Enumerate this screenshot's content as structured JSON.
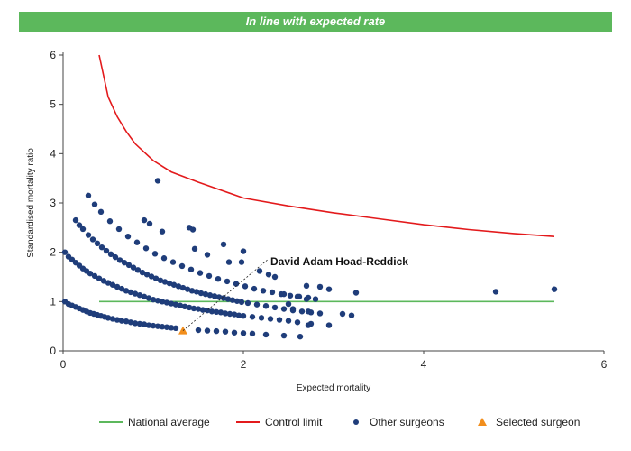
{
  "banner": {
    "text": "In line with expected rate",
    "color": "#5cb85c"
  },
  "chart_data": {
    "type": "scatter",
    "xlabel": "Expected mortality",
    "ylabel": "Standardised mortality ratio",
    "xlim": [
      0,
      6
    ],
    "ylim": [
      0,
      6
    ],
    "xticks": [
      "0",
      "2",
      "4",
      "6"
    ],
    "yticks": [
      "0",
      "1",
      "2",
      "3",
      "4",
      "5",
      "6"
    ],
    "grid": false,
    "legend_position": "bottom",
    "annotation": {
      "text": "David Adam Hoad-Reddick",
      "x": 1.33,
      "y": 0.41
    },
    "series": [
      {
        "name": "National average",
        "kind": "line",
        "color": "#5cb85c",
        "x": [
          0.4,
          5.45
        ],
        "y": [
          1,
          1
        ]
      },
      {
        "name": "Control limit",
        "kind": "line",
        "color": "#e31a1c",
        "x": [
          0.4,
          0.5,
          0.6,
          0.7,
          0.8,
          1.0,
          1.2,
          1.5,
          2.0,
          2.5,
          3.0,
          3.5,
          4.0,
          4.5,
          5.0,
          5.45
        ],
        "y": [
          6.0,
          5.15,
          4.75,
          4.45,
          4.2,
          3.86,
          3.63,
          3.42,
          3.1,
          2.94,
          2.8,
          2.68,
          2.56,
          2.46,
          2.38,
          2.32
        ]
      },
      {
        "name": "Other surgeons",
        "kind": "points",
        "color": "#1f3d7a",
        "points": [
          [
            0.02,
            1.0
          ],
          [
            0.06,
            0.95
          ],
          [
            0.1,
            0.92
          ],
          [
            0.14,
            0.89
          ],
          [
            0.18,
            0.86
          ],
          [
            0.22,
            0.83
          ],
          [
            0.26,
            0.8
          ],
          [
            0.3,
            0.77
          ],
          [
            0.34,
            0.75
          ],
          [
            0.38,
            0.73
          ],
          [
            0.42,
            0.71
          ],
          [
            0.46,
            0.69
          ],
          [
            0.5,
            0.67
          ],
          [
            0.55,
            0.65
          ],
          [
            0.6,
            0.63
          ],
          [
            0.65,
            0.61
          ],
          [
            0.7,
            0.6
          ],
          [
            0.75,
            0.58
          ],
          [
            0.8,
            0.56
          ],
          [
            0.85,
            0.55
          ],
          [
            0.9,
            0.54
          ],
          [
            0.95,
            0.52
          ],
          [
            1.0,
            0.51
          ],
          [
            1.05,
            0.5
          ],
          [
            1.1,
            0.49
          ],
          [
            1.15,
            0.48
          ],
          [
            1.2,
            0.47
          ],
          [
            1.25,
            0.46
          ],
          [
            1.5,
            0.42
          ],
          [
            1.6,
            0.41
          ],
          [
            1.7,
            0.4
          ],
          [
            1.8,
            0.39
          ],
          [
            1.9,
            0.37
          ],
          [
            2.0,
            0.36
          ],
          [
            2.1,
            0.35
          ],
          [
            2.25,
            0.33
          ],
          [
            2.45,
            0.31
          ],
          [
            2.63,
            0.29
          ],
          [
            0.02,
            2.0
          ],
          [
            0.06,
            1.91
          ],
          [
            0.1,
            1.85
          ],
          [
            0.14,
            1.79
          ],
          [
            0.18,
            1.73
          ],
          [
            0.22,
            1.67
          ],
          [
            0.26,
            1.62
          ],
          [
            0.3,
            1.57
          ],
          [
            0.35,
            1.52
          ],
          [
            0.4,
            1.47
          ],
          [
            0.45,
            1.42
          ],
          [
            0.5,
            1.38
          ],
          [
            0.55,
            1.34
          ],
          [
            0.6,
            1.3
          ],
          [
            0.65,
            1.26
          ],
          [
            0.7,
            1.22
          ],
          [
            0.75,
            1.19
          ],
          [
            0.8,
            1.16
          ],
          [
            0.85,
            1.13
          ],
          [
            0.9,
            1.1
          ],
          [
            0.95,
            1.07
          ],
          [
            1.0,
            1.04
          ],
          [
            1.05,
            1.02
          ],
          [
            1.1,
            1.0
          ],
          [
            1.15,
            0.98
          ],
          [
            1.2,
            0.96
          ],
          [
            1.25,
            0.94
          ],
          [
            1.3,
            0.92
          ],
          [
            1.35,
            0.9
          ],
          [
            1.4,
            0.88
          ],
          [
            1.45,
            0.86
          ],
          [
            1.5,
            0.85
          ],
          [
            1.55,
            0.83
          ],
          [
            1.6,
            0.82
          ],
          [
            1.65,
            0.8
          ],
          [
            1.7,
            0.79
          ],
          [
            1.75,
            0.78
          ],
          [
            1.8,
            0.76
          ],
          [
            1.85,
            0.75
          ],
          [
            1.9,
            0.74
          ],
          [
            1.95,
            0.72
          ],
          [
            2.0,
            0.71
          ],
          [
            2.1,
            0.69
          ],
          [
            2.2,
            0.67
          ],
          [
            2.3,
            0.65
          ],
          [
            2.4,
            0.63
          ],
          [
            2.5,
            0.61
          ],
          [
            2.6,
            0.58
          ],
          [
            2.75,
            0.55
          ],
          [
            2.95,
            0.52
          ],
          [
            0.14,
            2.65
          ],
          [
            0.18,
            2.55
          ],
          [
            0.22,
            2.47
          ],
          [
            0.28,
            2.35
          ],
          [
            0.33,
            2.26
          ],
          [
            0.38,
            2.18
          ],
          [
            0.43,
            2.1
          ],
          [
            0.48,
            2.03
          ],
          [
            0.53,
            1.96
          ],
          [
            0.58,
            1.9
          ],
          [
            0.63,
            1.84
          ],
          [
            0.68,
            1.79
          ],
          [
            0.73,
            1.74
          ],
          [
            0.78,
            1.69
          ],
          [
            0.83,
            1.64
          ],
          [
            0.88,
            1.59
          ],
          [
            0.93,
            1.55
          ],
          [
            0.98,
            1.51
          ],
          [
            1.03,
            1.47
          ],
          [
            1.08,
            1.43
          ],
          [
            1.13,
            1.4
          ],
          [
            1.18,
            1.37
          ],
          [
            1.23,
            1.34
          ],
          [
            1.28,
            1.31
          ],
          [
            1.33,
            1.28
          ],
          [
            1.38,
            1.25
          ],
          [
            1.43,
            1.22
          ],
          [
            1.48,
            1.2
          ],
          [
            1.53,
            1.17
          ],
          [
            1.58,
            1.15
          ],
          [
            1.63,
            1.13
          ],
          [
            1.68,
            1.11
          ],
          [
            1.73,
            1.09
          ],
          [
            1.78,
            1.07
          ],
          [
            1.83,
            1.05
          ],
          [
            1.88,
            1.03
          ],
          [
            1.93,
            1.01
          ],
          [
            1.98,
            0.99
          ],
          [
            2.05,
            0.97
          ],
          [
            2.15,
            0.94
          ],
          [
            2.25,
            0.91
          ],
          [
            2.35,
            0.88
          ],
          [
            2.45,
            0.85
          ],
          [
            2.55,
            0.82
          ],
          [
            2.65,
            0.8
          ],
          [
            2.75,
            0.78
          ],
          [
            2.85,
            0.76
          ],
          [
            0.28,
            3.15
          ],
          [
            0.35,
            2.97
          ],
          [
            0.42,
            2.82
          ],
          [
            0.52,
            2.63
          ],
          [
            0.62,
            2.47
          ],
          [
            0.72,
            2.32
          ],
          [
            0.82,
            2.2
          ],
          [
            0.92,
            2.08
          ],
          [
            1.02,
            1.97
          ],
          [
            1.12,
            1.88
          ],
          [
            1.22,
            1.8
          ],
          [
            1.32,
            1.72
          ],
          [
            1.42,
            1.65
          ],
          [
            1.52,
            1.58
          ],
          [
            1.62,
            1.52
          ],
          [
            1.72,
            1.46
          ],
          [
            1.82,
            1.41
          ],
          [
            1.92,
            1.36
          ],
          [
            2.02,
            1.31
          ],
          [
            2.12,
            1.26
          ],
          [
            2.22,
            1.22
          ],
          [
            2.32,
            1.19
          ],
          [
            2.42,
            1.15
          ],
          [
            2.52,
            1.12
          ],
          [
            2.62,
            1.1
          ],
          [
            2.72,
            1.08
          ],
          [
            2.8,
            1.05
          ],
          [
            0.9,
            2.65
          ],
          [
            0.96,
            2.58
          ],
          [
            1.1,
            2.42
          ],
          [
            1.4,
            2.5
          ],
          [
            1.44,
            2.46
          ],
          [
            1.78,
            2.16
          ],
          [
            2.0,
            2.02
          ],
          [
            1.6,
            1.95
          ],
          [
            1.46,
            2.07
          ],
          [
            1.84,
            1.8
          ],
          [
            1.98,
            1.8
          ],
          [
            2.18,
            1.62
          ],
          [
            2.28,
            1.55
          ],
          [
            2.35,
            1.5
          ],
          [
            1.05,
            3.45
          ],
          [
            2.7,
            1.32
          ],
          [
            2.85,
            1.3
          ],
          [
            2.95,
            1.25
          ],
          [
            3.25,
            1.18
          ],
          [
            2.45,
            1.15
          ],
          [
            2.6,
            1.1
          ],
          [
            2.7,
            1.05
          ],
          [
            2.5,
            0.95
          ],
          [
            2.55,
            0.85
          ],
          [
            2.72,
            0.8
          ],
          [
            3.1,
            0.75
          ],
          [
            3.2,
            0.72
          ],
          [
            4.8,
            1.2
          ],
          [
            5.45,
            1.25
          ],
          [
            2.72,
            0.52
          ]
        ]
      },
      {
        "name": "Selected surgeon",
        "kind": "marker",
        "color": "#f28e1c",
        "points": [
          [
            1.33,
            0.41
          ]
        ]
      }
    ]
  }
}
